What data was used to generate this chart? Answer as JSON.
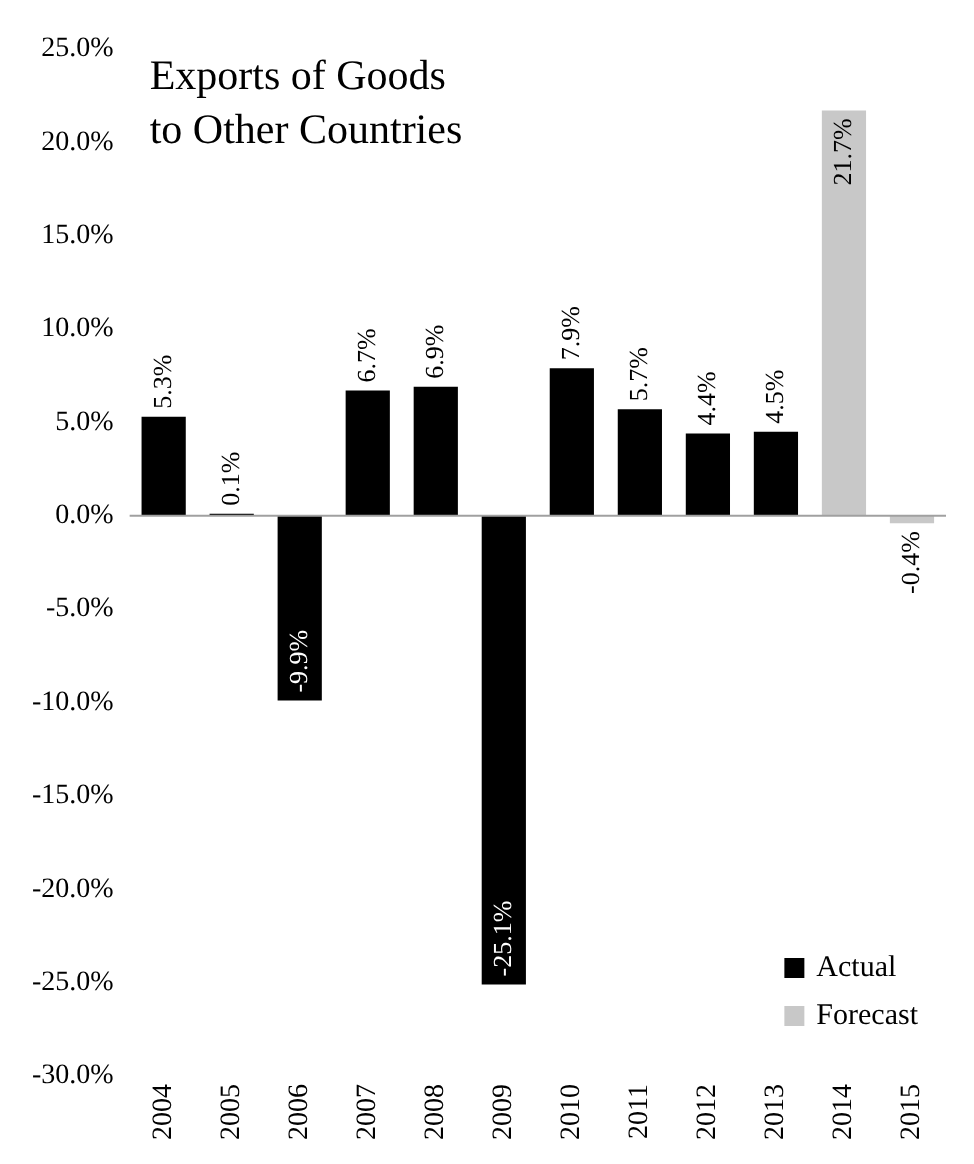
{
  "chart_data": {
    "type": "bar",
    "title": "Exports of Goods\nto Other Countries",
    "categories": [
      "2004",
      "2005",
      "2006",
      "2007",
      "2008",
      "2009",
      "2010",
      "2011",
      "2012",
      "2013",
      "2014",
      "2015"
    ],
    "series": [
      {
        "name": "Actual",
        "color": "#000000",
        "values": [
          5.3,
          0.1,
          -9.9,
          6.7,
          6.9,
          -25.1,
          7.9,
          5.7,
          4.4,
          4.5,
          null,
          null
        ],
        "value_labels": [
          "5.3%",
          "0.1%",
          "-9.9%",
          "6.7%",
          "6.9%",
          "-25.1%",
          "7.9%",
          "5.7%",
          "4.4%",
          "4.5%",
          null,
          null
        ]
      },
      {
        "name": "Forecast",
        "color": "#c8c8c8",
        "values": [
          null,
          null,
          null,
          null,
          null,
          null,
          null,
          null,
          null,
          null,
          21.7,
          -0.4
        ],
        "value_labels": [
          null,
          null,
          null,
          null,
          null,
          null,
          null,
          null,
          null,
          null,
          "21.7%",
          "-0.4%"
        ]
      }
    ],
    "ylim": [
      -30,
      25
    ],
    "yticks": [
      {
        "value": -30,
        "label": "-30.0%"
      },
      {
        "value": -25,
        "label": "-25.0%"
      },
      {
        "value": -20,
        "label": "-20.0%"
      },
      {
        "value": -15,
        "label": "-15.0%"
      },
      {
        "value": -10,
        "label": "-10.0%"
      },
      {
        "value": -5,
        "label": "-5.0%"
      },
      {
        "value": 0,
        "label": "0.0%"
      },
      {
        "value": 5,
        "label": "5.0%"
      },
      {
        "value": 10,
        "label": "10.0%"
      },
      {
        "value": 15,
        "label": "15.0%"
      },
      {
        "value": 20,
        "label": "20.0%"
      },
      {
        "value": 25,
        "label": "25.0%"
      }
    ],
    "ref_lines": [
      {
        "axis": "y",
        "value": 0,
        "color": "#a0a0a0"
      }
    ],
    "legend": "bottom right",
    "grid": false
  }
}
